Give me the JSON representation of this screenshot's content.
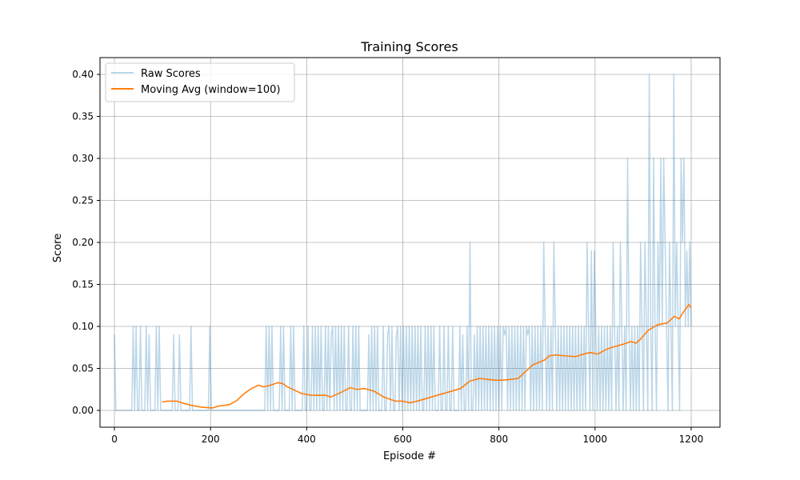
{
  "chart_data": {
    "type": "line",
    "title": "Training Scores",
    "xlabel": "Episode #",
    "ylabel": "Score",
    "xlim": [
      -30,
      1260
    ],
    "ylim": [
      -0.02,
      0.42
    ],
    "xticks": [
      0,
      200,
      400,
      600,
      800,
      1000,
      1200
    ],
    "yticks": [
      0.0,
      0.05,
      0.1,
      0.15,
      0.2,
      0.25,
      0.3,
      0.35,
      0.4
    ],
    "grid": true,
    "legend": {
      "placement": "top-left",
      "entries": [
        "Raw Scores",
        "Moving Avg (window=100)"
      ]
    },
    "series": [
      {
        "name": "Raw Scores",
        "color": "#1f77b4",
        "opacity": 0.3,
        "values": [
          0.09,
          0.0,
          0.0,
          0.0,
          0.0,
          0.0,
          0.0,
          0.0,
          0.0,
          0.0,
          0.0,
          0.0,
          0.0,
          0.1,
          0.0,
          0.1,
          0.0,
          0.0,
          0.1,
          0.0,
          0.0,
          0.0,
          0.1,
          0.0,
          0.09,
          0.0,
          0.0,
          0.0,
          0.0,
          0.1,
          0.0,
          0.1,
          0.0,
          0.0,
          0.0,
          0.0,
          0.0,
          0.0,
          0.0,
          0.0,
          0.0,
          0.09,
          0.0,
          0.0,
          0.0,
          0.09,
          0.0,
          0.0,
          0.0,
          0.0,
          0.0,
          0.0,
          0.0,
          0.1,
          0.0,
          0.0,
          0.0,
          0.0,
          0.0,
          0.0,
          0.0,
          0.0,
          0.0,
          0.0,
          0.0,
          0.0,
          0.1,
          0.0,
          0.0,
          0.0,
          0.0,
          0.0,
          0.0,
          0.0,
          0.0,
          0.0,
          0.0,
          0.0,
          0.0,
          0.0,
          0.0,
          0.0,
          0.0,
          0.0,
          0.0,
          0.0,
          0.0,
          0.0,
          0.0,
          0.0,
          0.0,
          0.0,
          0.0,
          0.0,
          0.0,
          0.0,
          0.0,
          0.0,
          0.0,
          0.0,
          0.0,
          0.0,
          0.0,
          0.0,
          0.0,
          0.1,
          0.0,
          0.1,
          0.0,
          0.1,
          0.0,
          0.0,
          0.0,
          0.0,
          0.0,
          0.1,
          0.0,
          0.1,
          0.0,
          0.0,
          0.0,
          0.0,
          0.1,
          0.0,
          0.1,
          0.0,
          0.0,
          0.0,
          0.0,
          0.0,
          0.0,
          0.1,
          0.0,
          0.0,
          0.1,
          0.0,
          0.0,
          0.1,
          0.0,
          0.1,
          0.0,
          0.1,
          0.0,
          0.1,
          0.0,
          0.0,
          0.1,
          0.0,
          0.1,
          0.0,
          0.09,
          0.1,
          0.0,
          0.1,
          0.0,
          0.1,
          0.0,
          0.1,
          0.0,
          0.1,
          0.0,
          0.0,
          0.1,
          0.0,
          0.0,
          0.1,
          0.0,
          0.1,
          0.0,
          0.1,
          0.0,
          0.0,
          0.0,
          0.0,
          0.0,
          0.0,
          0.09,
          0.0,
          0.1,
          0.0,
          0.1,
          0.0,
          0.1,
          0.0,
          0.0,
          0.0,
          0.1,
          0.0,
          0.0,
          0.09,
          0.1,
          0.0,
          0.1,
          0.0,
          0.0,
          0.09,
          0.1,
          0.0,
          0.1,
          0.0,
          0.1,
          0.0,
          0.1,
          0.0,
          0.1,
          0.0,
          0.1,
          0.0,
          0.1,
          0.0,
          0.1,
          0.0,
          0.1,
          0.0,
          0.0,
          0.1,
          0.0,
          0.1,
          0.0,
          0.1,
          0.0,
          0.1,
          0.0,
          0.0,
          0.0,
          0.1,
          0.0,
          0.0,
          0.1,
          0.0,
          0.0,
          0.1,
          0.0,
          0.0,
          0.1,
          0.0,
          0.0,
          0.0,
          0.0,
          0.1,
          0.0,
          0.09,
          0.0,
          0.0,
          0.1,
          0.0,
          0.2,
          0.0,
          0.0,
          0.09,
          0.0,
          0.1,
          0.0,
          0.1,
          0.0,
          0.1,
          0.0,
          0.1,
          0.0,
          0.1,
          0.0,
          0.1,
          0.0,
          0.1,
          0.0,
          0.1,
          0.0,
          0.1,
          0.0,
          0.1,
          0.09,
          0.1,
          0.0,
          0.1,
          0.0,
          0.1,
          0.0,
          0.1,
          0.0,
          0.1,
          0.0,
          0.1,
          0.0,
          0.1,
          0.0,
          0.1,
          0.09,
          0.1,
          0.0,
          0.1,
          0.0,
          0.1,
          0.0,
          0.1,
          0.0,
          0.1,
          0.0,
          0.2,
          0.1,
          0.0,
          0.1,
          0.0,
          0.1,
          0.0,
          0.2,
          0.1,
          0.0,
          0.1,
          0.0,
          0.1,
          0.0,
          0.1,
          0.0,
          0.1,
          0.0,
          0.1,
          0.0,
          0.1,
          0.0,
          0.1,
          0.0,
          0.1,
          0.0,
          0.1,
          0.0,
          0.1,
          0.0,
          0.2,
          0.1,
          0.0,
          0.19,
          0.0,
          0.19,
          0.1,
          0.0,
          0.1,
          0.0,
          0.1,
          0.0,
          0.1,
          0.0,
          0.1,
          0.0,
          0.1,
          0.0,
          0.2,
          0.1,
          0.0,
          0.1,
          0.0,
          0.2,
          0.1,
          0.0,
          0.1,
          0.0,
          0.3,
          0.1,
          0.0,
          0.1,
          0.0,
          0.1,
          0.0,
          0.1,
          0.0,
          0.2,
          0.1,
          0.0,
          0.2,
          0.1,
          0.0,
          0.4,
          0.1,
          0.0,
          0.3,
          0.1,
          0.0,
          0.2,
          0.1,
          0.3,
          0.1,
          0.3,
          0.2,
          0.1,
          0.0,
          0.2,
          0.1,
          0.0,
          0.4,
          0.1,
          0.2,
          0.1,
          0.0,
          0.3,
          0.2,
          0.3,
          0.1,
          0.19,
          0.1,
          0.2,
          0.1
        ],
        "note_x": "evenly spaced from 0 to 1200"
      },
      {
        "name": "Moving Avg (window=100)",
        "color": "#ff7f0e",
        "x": [
          99,
          110,
          130,
          140,
          160,
          180,
          200,
          205,
          215,
          240,
          255,
          270,
          285,
          300,
          310,
          325,
          340,
          350,
          360,
          375,
          390,
          400,
          410,
          440,
          450,
          470,
          490,
          505,
          520,
          540,
          560,
          585,
          600,
          615,
          630,
          660,
          690,
          720,
          740,
          760,
          790,
          810,
          840,
          855,
          870,
          895,
          905,
          920,
          935,
          960,
          970,
          990,
          1005,
          1025,
          1035,
          1060,
          1075,
          1085,
          1095,
          1110,
          1130,
          1150,
          1165,
          1175,
          1185,
          1195,
          1200
        ],
        "values": [
          0.01,
          0.011,
          0.011,
          0.009,
          0.006,
          0.004,
          0.003,
          0.003,
          0.005,
          0.007,
          0.012,
          0.02,
          0.026,
          0.03,
          0.028,
          0.03,
          0.033,
          0.032,
          0.028,
          0.024,
          0.02,
          0.019,
          0.018,
          0.018,
          0.016,
          0.021,
          0.027,
          0.025,
          0.026,
          0.023,
          0.016,
          0.011,
          0.011,
          0.009,
          0.011,
          0.016,
          0.021,
          0.026,
          0.035,
          0.038,
          0.036,
          0.036,
          0.038,
          0.046,
          0.054,
          0.06,
          0.065,
          0.066,
          0.065,
          0.064,
          0.066,
          0.069,
          0.067,
          0.073,
          0.075,
          0.079,
          0.082,
          0.08,
          0.085,
          0.095,
          0.102,
          0.104,
          0.112,
          0.109,
          0.118,
          0.126,
          0.122
        ]
      }
    ]
  }
}
